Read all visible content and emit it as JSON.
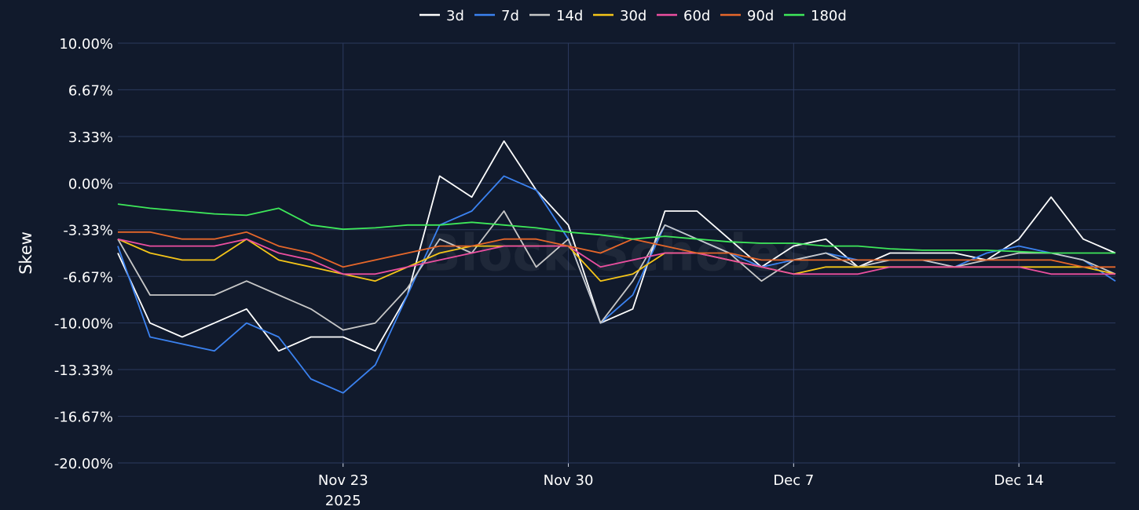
{
  "chart_data": {
    "type": "line",
    "ylabel": "Skew",
    "watermark": "Block Scholes",
    "ylim": [
      -20,
      10
    ],
    "y_ticks": [
      10,
      6.67,
      3.33,
      0,
      -3.33,
      -6.67,
      -10,
      -13.33,
      -16.67,
      -20
    ],
    "y_tick_labels": [
      "10.00%",
      "6.67%",
      "3.33%",
      "0.00%",
      "-3.33%",
      "-6.67%",
      "-10.00%",
      "-13.33%",
      "-16.67%",
      "-20.00%"
    ],
    "xlim": [
      "2025-11-16",
      "2025-12-17"
    ],
    "x_ticks": [
      "2025-11-23",
      "2025-11-30",
      "2025-12-07",
      "2025-12-14"
    ],
    "x_tick_labels": [
      [
        "Nov 23",
        "2025"
      ],
      [
        "Nov 30"
      ],
      [
        "Dec 7"
      ],
      [
        "Dec 14"
      ]
    ],
    "grid": true,
    "legend_position": "top-center",
    "x": [
      "2025-11-16",
      "2025-11-17",
      "2025-11-18",
      "2025-11-19",
      "2025-11-20",
      "2025-11-21",
      "2025-11-22",
      "2025-11-23",
      "2025-11-24",
      "2025-11-25",
      "2025-11-26",
      "2025-11-27",
      "2025-11-28",
      "2025-11-29",
      "2025-11-30",
      "2025-12-01",
      "2025-12-02",
      "2025-12-03",
      "2025-12-04",
      "2025-12-05",
      "2025-12-06",
      "2025-12-07",
      "2025-12-08",
      "2025-12-09",
      "2025-12-10",
      "2025-12-11",
      "2025-12-12",
      "2025-12-13",
      "2025-12-14",
      "2025-12-15",
      "2025-12-16",
      "2025-12-17"
    ],
    "series": [
      {
        "name": "3d",
        "color": "#ffffff",
        "values": [
          -5,
          -10,
          -11,
          -10,
          -9,
          -12,
          -11,
          -11,
          -12,
          -8,
          0.5,
          -1,
          3,
          -0.5,
          -3,
          -10,
          -9,
          -2,
          -2,
          -4,
          -6,
          -4.5,
          -4,
          -6,
          -5,
          -5,
          -5,
          -5.5,
          -4,
          -1,
          -4,
          -5
        ]
      },
      {
        "name": "7d",
        "color": "#3b82f0",
        "values": [
          -4.5,
          -11,
          -11.5,
          -12,
          -10,
          -11,
          -14,
          -15,
          -13,
          -8,
          -3,
          -2,
          0.5,
          -0.5,
          -4,
          -10,
          -8,
          -3,
          -4,
          -5,
          -6,
          -5.5,
          -5,
          -5.5,
          -5.5,
          -5.5,
          -6,
          -5,
          -4.5,
          -5,
          -5.5,
          -7
        ]
      },
      {
        "name": "14d",
        "color": "#c8c8c8",
        "values": [
          -4,
          -8,
          -8,
          -8,
          -7,
          -8,
          -9,
          -10.5,
          -10,
          -7.5,
          -4,
          -5,
          -2,
          -6,
          -4,
          -10,
          -7,
          -3,
          -4,
          -5,
          -7,
          -5.5,
          -5,
          -6,
          -5.5,
          -5.5,
          -6,
          -5.5,
          -5,
          -5,
          -5.5,
          -6.5
        ]
      },
      {
        "name": "30d",
        "color": "#f5c518",
        "values": [
          -4,
          -5,
          -5.5,
          -5.5,
          -4,
          -5.5,
          -6,
          -6.5,
          -7,
          -6,
          -5,
          -4.5,
          -4.5,
          -4.5,
          -4.5,
          -7,
          -6.5,
          -5,
          -5,
          -5.5,
          -6,
          -6.5,
          -6,
          -6,
          -6,
          -6,
          -6,
          -6,
          -6,
          -6,
          -6,
          -6.5
        ]
      },
      {
        "name": "60d",
        "color": "#ec4fa0",
        "values": [
          -4,
          -4.5,
          -4.5,
          -4.5,
          -4,
          -5,
          -5.5,
          -6.5,
          -6.5,
          -6,
          -5.5,
          -5,
          -4.5,
          -4.5,
          -4.5,
          -6,
          -5.5,
          -5,
          -5,
          -5.5,
          -6,
          -6.5,
          -6.5,
          -6.5,
          -6,
          -6,
          -6,
          -6,
          -6,
          -6.5,
          -6.5,
          -6.5
        ]
      },
      {
        "name": "90d",
        "color": "#e6672a",
        "values": [
          -3.5,
          -3.5,
          -4,
          -4,
          -3.5,
          -4.5,
          -5,
          -6,
          -5.5,
          -5,
          -4.5,
          -4.5,
          -4,
          -4,
          -4.5,
          -5,
          -4,
          -4.5,
          -5,
          -5,
          -5.5,
          -5.5,
          -5.5,
          -5.5,
          -5.5,
          -5.5,
          -5.5,
          -5.5,
          -5.5,
          -5.5,
          -6,
          -6
        ]
      },
      {
        "name": "180d",
        "color": "#3ee85a",
        "values": [
          -1.5,
          -1.8,
          -2,
          -2.2,
          -2.3,
          -1.8,
          -3,
          -3.3,
          -3.2,
          -3,
          -3,
          -2.8,
          -3,
          -3.2,
          -3.5,
          -3.7,
          -4,
          -3.8,
          -4,
          -4.2,
          -4.3,
          -4.3,
          -4.5,
          -4.5,
          -4.7,
          -4.8,
          -4.8,
          -4.8,
          -4.9,
          -5,
          -5,
          -5
        ]
      }
    ]
  }
}
